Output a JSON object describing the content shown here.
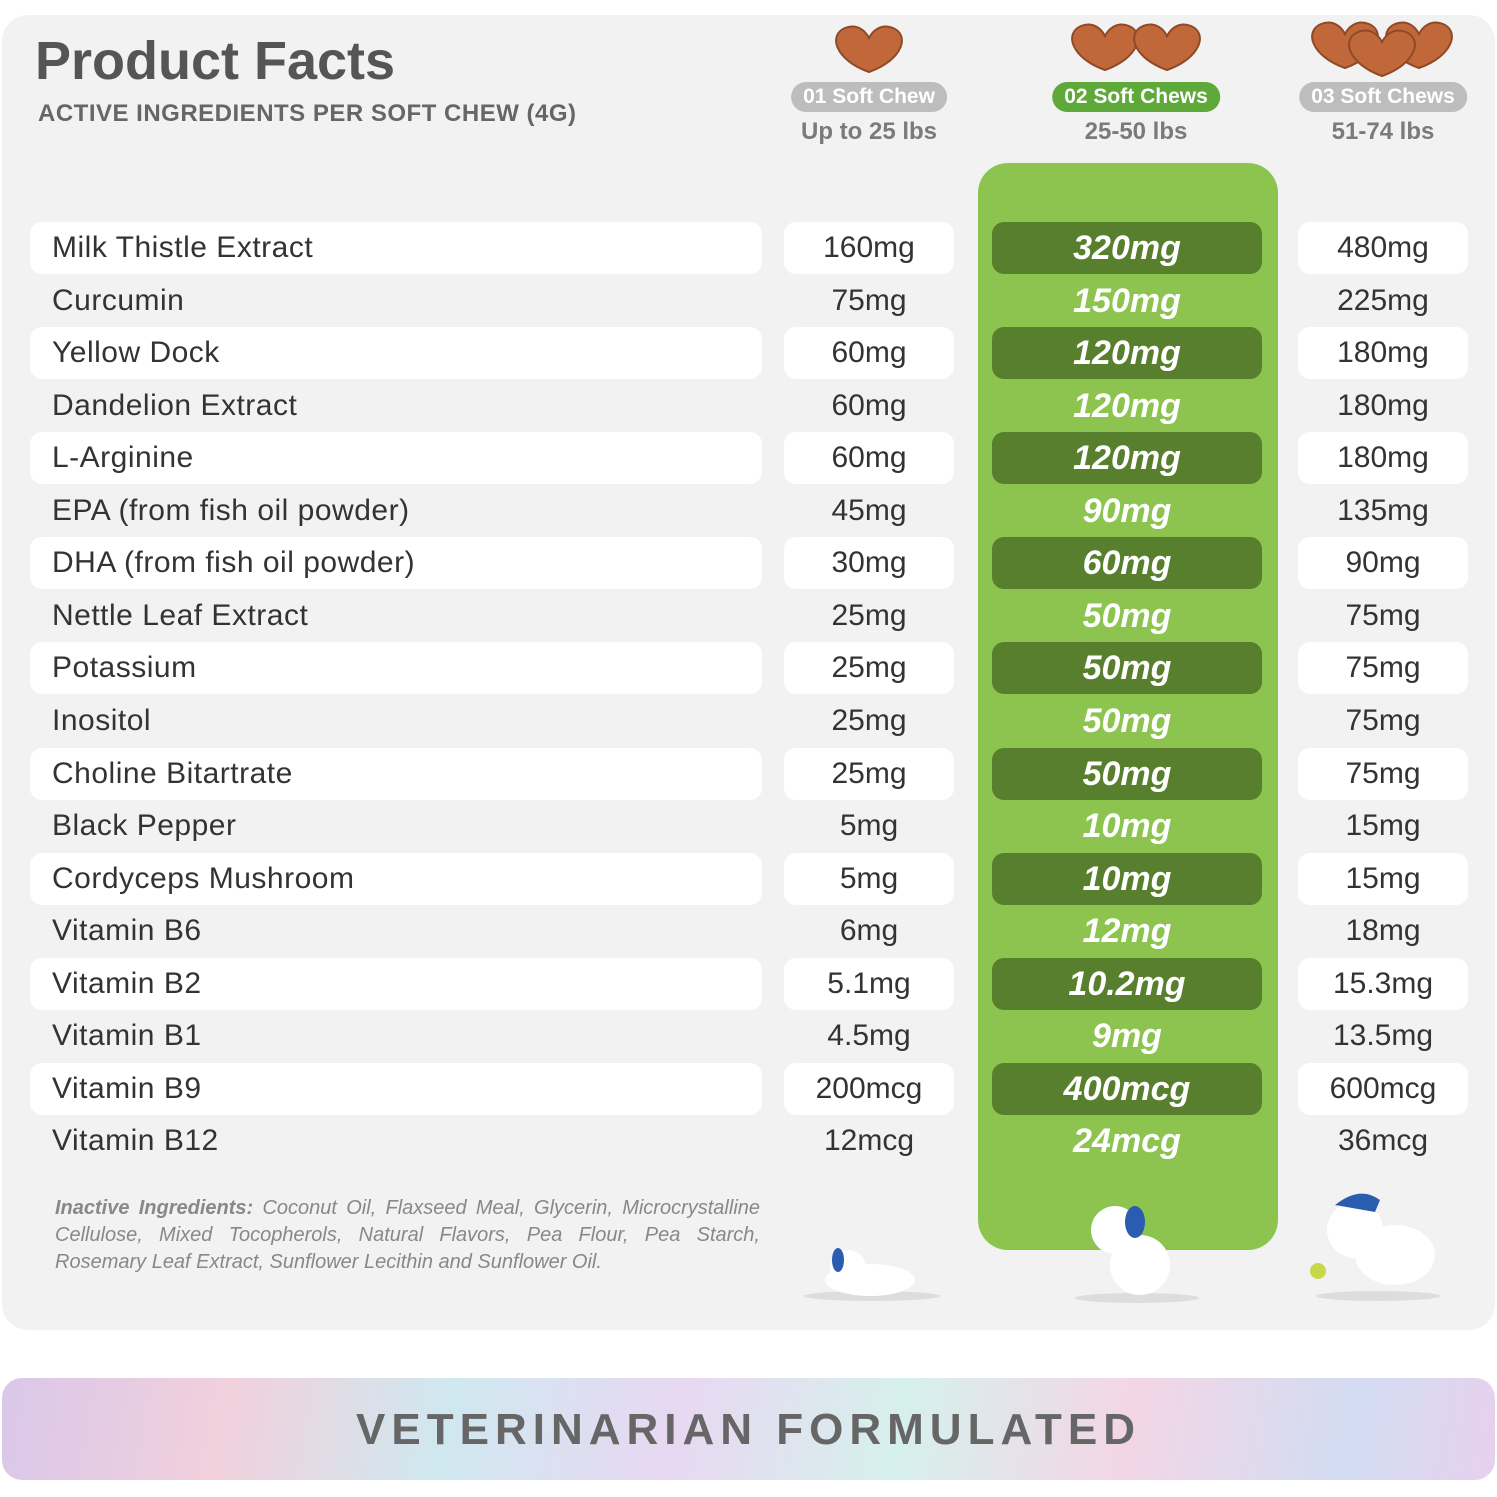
{
  "header": {
    "title": "Product Facts",
    "subtitle": "ACTIVE INGREDIENTS PER SOFT CHEW (4G)"
  },
  "columns": [
    {
      "badge": "01 Soft Chew",
      "weight": "Up to 25 lbs"
    },
    {
      "badge": "02 Soft Chews",
      "weight": "25-50 lbs"
    },
    {
      "badge": "03 Soft Chews",
      "weight": "51-74 lbs"
    }
  ],
  "rows": [
    {
      "name": "Milk Thistle Extract",
      "values": [
        "160mg",
        "320mg",
        "480mg"
      ]
    },
    {
      "name": "Curcumin",
      "values": [
        "75mg",
        "150mg",
        "225mg"
      ]
    },
    {
      "name": "Yellow Dock",
      "values": [
        "60mg",
        "120mg",
        "180mg"
      ]
    },
    {
      "name": "Dandelion Extract",
      "values": [
        "60mg",
        "120mg",
        "180mg"
      ]
    },
    {
      "name": "L-Arginine",
      "values": [
        "60mg",
        "120mg",
        "180mg"
      ]
    },
    {
      "name": "EPA (from fish oil powder)",
      "values": [
        "45mg",
        "90mg",
        "135mg"
      ]
    },
    {
      "name": "DHA (from fish oil powder)",
      "values": [
        "30mg",
        "60mg",
        "90mg"
      ]
    },
    {
      "name": "Nettle Leaf Extract",
      "values": [
        "25mg",
        "50mg",
        "75mg"
      ]
    },
    {
      "name": "Potassium",
      "values": [
        "25mg",
        "50mg",
        "75mg"
      ]
    },
    {
      "name": "Inositol",
      "values": [
        "25mg",
        "50mg",
        "75mg"
      ]
    },
    {
      "name": "Choline Bitartrate",
      "values": [
        "25mg",
        "50mg",
        "75mg"
      ]
    },
    {
      "name": "Black Pepper",
      "values": [
        "5mg",
        "10mg",
        "15mg"
      ]
    },
    {
      "name": "Cordyceps Mushroom",
      "values": [
        "5mg",
        "10mg",
        "15mg"
      ]
    },
    {
      "name": "Vitamin B6",
      "values": [
        "6mg",
        "12mg",
        "18mg"
      ]
    },
    {
      "name": "Vitamin B2",
      "values": [
        "5.1mg",
        "10.2mg",
        "15.3mg"
      ]
    },
    {
      "name": "Vitamin B1",
      "values": [
        "4.5mg",
        "9mg",
        "13.5mg"
      ]
    },
    {
      "name": "Vitamin B9",
      "values": [
        "200mcg",
        "400mcg",
        "600mcg"
      ]
    },
    {
      "name": "Vitamin B12",
      "values": [
        "12mcg",
        "24mcg",
        "36mcg"
      ]
    }
  ],
  "inactive": {
    "label": "Inactive Ingredients:",
    "text": "Coconut Oil, Flaxseed Meal, Glycerin, Microcrystalline Cellulose, Mixed Tocopherols, Natural Flavors, Pea Flour, Pea Starch, Rosemary Leaf Extract, Sunflower Lecithin and Sunflower Oil."
  },
  "banner": {
    "text": "VETERINARIAN FORMULATED"
  }
}
